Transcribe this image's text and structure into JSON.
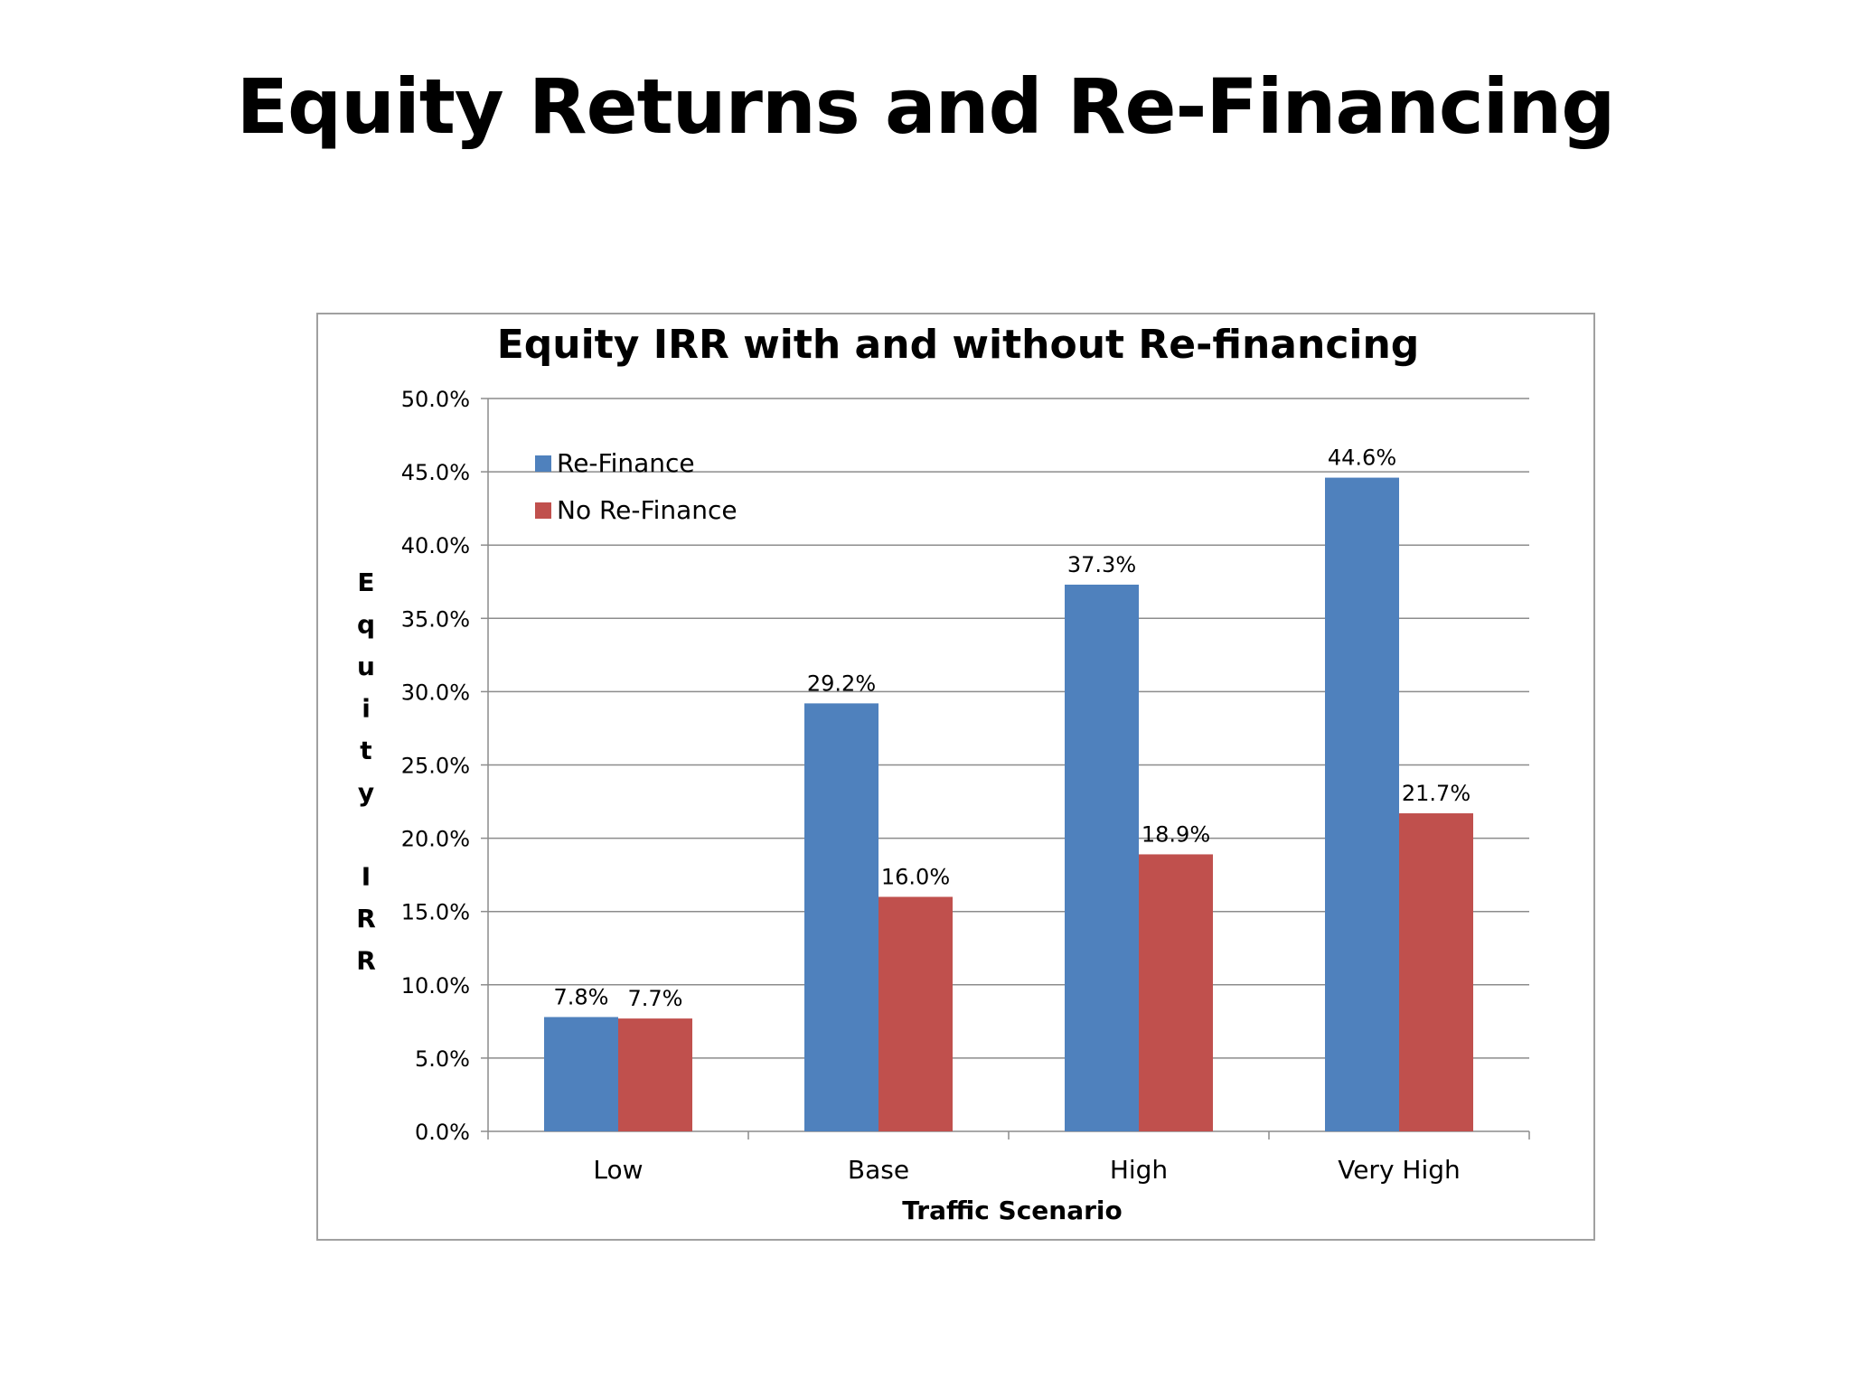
{
  "slide": {
    "title": "Equity Returns and Re-Financing"
  },
  "chart_data": {
    "type": "bar",
    "title": "Equity IRR with and without Re-financing",
    "xlabel": "Traffic Scenario",
    "ylabel": "Equity IRR",
    "categories": [
      "Low",
      "Base",
      "High",
      "Very High"
    ],
    "series": [
      {
        "name": "Re-Finance",
        "values": [
          7.8,
          29.2,
          37.3,
          44.6
        ],
        "labels": [
          "7.8%",
          "29.2%",
          "37.3%",
          "44.6%"
        ],
        "color": "#4F81BD"
      },
      {
        "name": "No Re-Finance",
        "values": [
          7.7,
          16.0,
          18.9,
          21.7
        ],
        "labels": [
          "7.7%",
          "16.0%",
          "18.9%",
          "21.7%"
        ],
        "color": "#C0504D"
      }
    ],
    "ylim": [
      0,
      50
    ],
    "yticks": [
      0,
      5,
      10,
      15,
      20,
      25,
      30,
      35,
      40,
      45,
      50
    ],
    "ytick_labels": [
      "0.0%",
      "5.0%",
      "10.0%",
      "15.0%",
      "20.0%",
      "25.0%",
      "30.0%",
      "35.0%",
      "40.0%",
      "45.0%",
      "50.0%"
    ],
    "grid": true,
    "legend_position": "top-left",
    "data_labels": true
  }
}
